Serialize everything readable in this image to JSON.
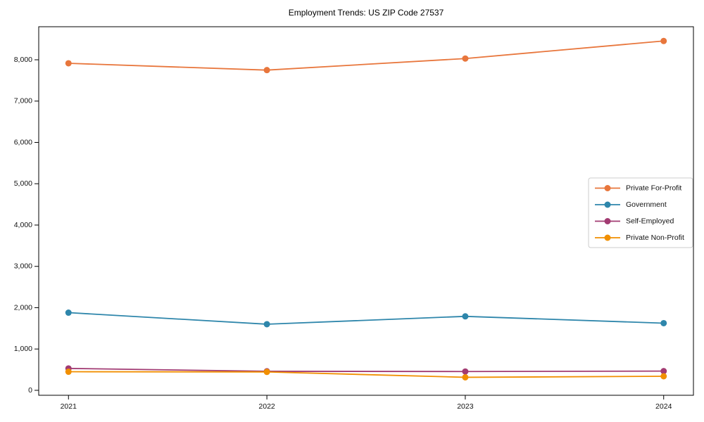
{
  "chart_data": {
    "type": "line",
    "title": "Employment Trends: US ZIP Code 27537",
    "xlabel": "",
    "ylabel": "",
    "grid": false,
    "legend_position": "center right",
    "x": [
      2021,
      2022,
      2023,
      2024
    ],
    "x_tick_labels": [
      "2021",
      "2022",
      "2023",
      "2024"
    ],
    "xlim": [
      2020.85,
      2024.15
    ],
    "y_ticks": [
      0,
      1000,
      2000,
      3000,
      4000,
      5000,
      6000,
      7000,
      8000
    ],
    "y_tick_labels": [
      "0",
      "1,000",
      "2,000",
      "3,000",
      "4,000",
      "5,000",
      "6,000",
      "7,000",
      "8,000"
    ],
    "ylim": [
      -120,
      8800
    ],
    "series": [
      {
        "name": "Private For-Profit",
        "color": "#E8763C",
        "values": [
          7915,
          7750,
          8030,
          8455
        ]
      },
      {
        "name": "Government",
        "color": "#2E86AB",
        "values": [
          1880,
          1600,
          1790,
          1625
        ]
      },
      {
        "name": "Self-Employed",
        "color": "#A23B72",
        "values": [
          530,
          460,
          455,
          465
        ]
      },
      {
        "name": "Private Non-Profit",
        "color": "#F18F01",
        "values": [
          450,
          445,
          315,
          340
        ]
      }
    ],
    "colors": {
      "background": "#ffffff",
      "spine": "#000000",
      "tick_label": "#111111",
      "legend_border": "#cccccc",
      "legend_background": "#ffffff"
    }
  }
}
